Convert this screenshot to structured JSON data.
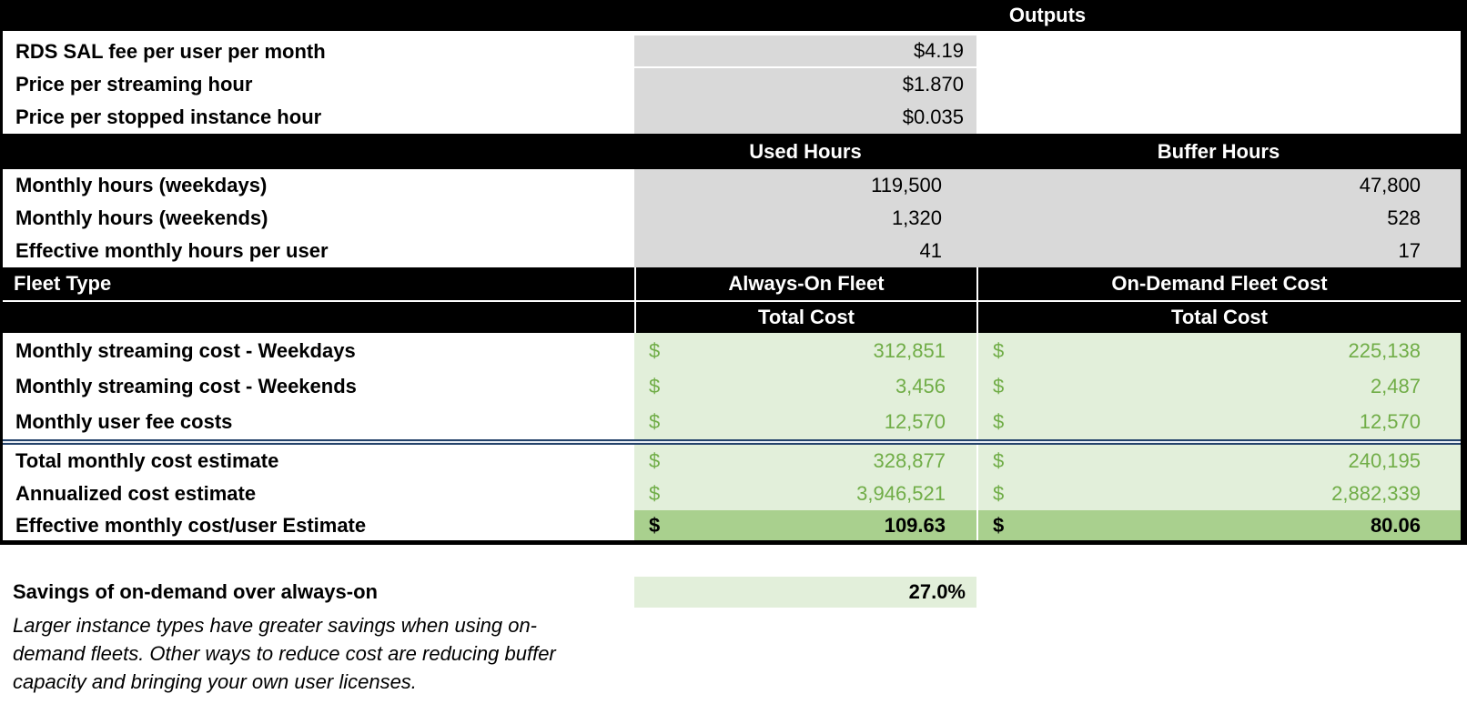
{
  "sheet": {
    "outputs_header": "Outputs",
    "pricing_rows": [
      {
        "label": "RDS SAL fee per user per month",
        "value": "$4.19"
      },
      {
        "label": "Price per streaming hour",
        "value": "$1.870"
      },
      {
        "label": "Price per stopped instance hour",
        "value": "$0.035"
      }
    ],
    "hours_section": {
      "used_header": "Used Hours",
      "buffer_header": "Buffer Hours",
      "rows": [
        {
          "label": "Monthly hours (weekdays)",
          "used": "119,500",
          "buffer": "47,800"
        },
        {
          "label": "Monthly hours (weekends)",
          "used": "1,320",
          "buffer": "528"
        },
        {
          "label": "Effective monthly hours per user",
          "used": "41",
          "buffer": "17"
        }
      ]
    },
    "fleet_section": {
      "fleet_type_header": "Fleet Type",
      "always_on_header": "Always-On Fleet",
      "on_demand_header": "On-Demand Fleet Cost",
      "always_on_subheader": "Total Cost",
      "on_demand_subheader": "Total Cost",
      "currency_symbol": "$",
      "cost_rows": [
        {
          "label": "Monthly streaming cost - Weekdays",
          "always_on": "312,851",
          "on_demand": "225,138"
        },
        {
          "label": "Monthly streaming cost - Weekends",
          "always_on": "3,456",
          "on_demand": "2,487"
        },
        {
          "label": "Monthly user fee costs",
          "always_on": "12,570",
          "on_demand": "12,570"
        }
      ],
      "total_rows": [
        {
          "label": "Total monthly cost estimate",
          "always_on": "328,877",
          "on_demand": "240,195"
        },
        {
          "label": "Annualized cost estimate",
          "always_on": "3,946,521",
          "on_demand": "2,882,339"
        }
      ],
      "effective_row": {
        "label": "Effective monthly cost/user Estimate",
        "always_on": "109.63",
        "on_demand": "80.06"
      }
    },
    "summary": {
      "savings_label": "Savings of on-demand over always-on",
      "savings_value": "27.0%",
      "note_lines": [
        "Larger instance types have greater savings when using on-",
        "demand fleets. Other ways to reduce cost are reducing buffer",
        "capacity and bringing your own user licenses."
      ]
    }
  },
  "colors": {
    "header_bg": "#000000",
    "header_text": "#ffffff",
    "gray_cell": "#d9d9d9",
    "light_green_cell": "#e2efda",
    "dark_green_cell": "#a9d08e",
    "green_text": "#70ad47",
    "total_double_border": "#24436b"
  }
}
